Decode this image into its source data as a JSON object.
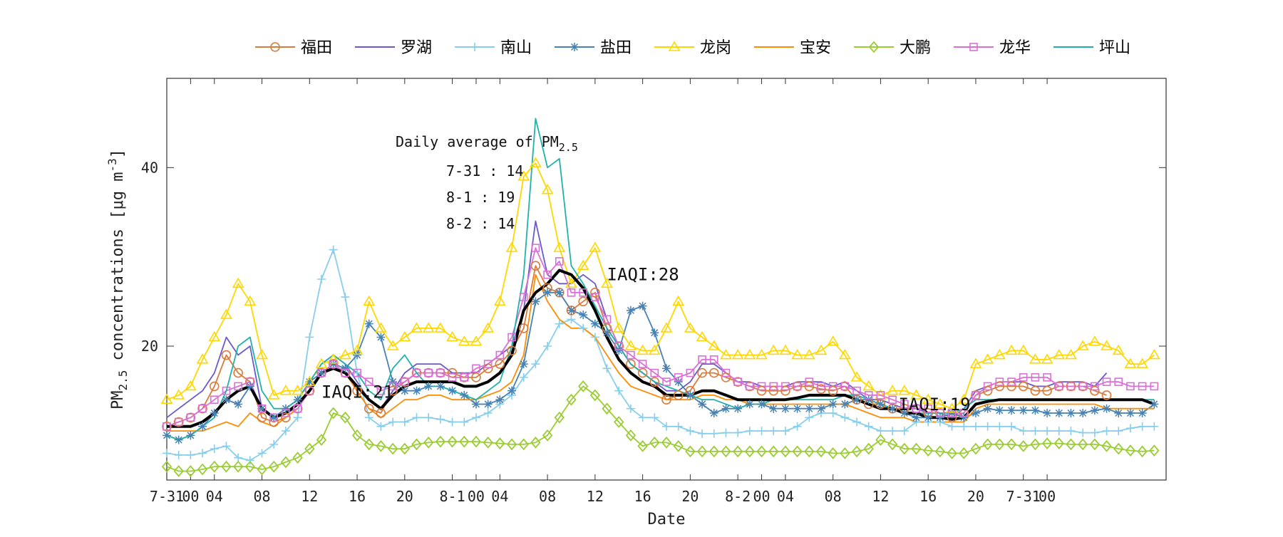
{
  "chart_data": {
    "type": "line",
    "xlabel": "Date",
    "ylabel_main": "PM",
    "ylabel_sub": "2.5",
    "ylabel_tail": " concentrations [μg m",
    "ylabel_sup": "-3",
    "ylabel_end": "]",
    "ylim": [
      5,
      50
    ],
    "yticks": [
      20,
      40
    ],
    "xlim": [
      0,
      84
    ],
    "xticks": [
      {
        "x": 0,
        "label": "7-31"
      },
      {
        "x": 2,
        "label": "00"
      },
      {
        "x": 4,
        "label": "04"
      },
      {
        "x": 8,
        "label": "08"
      },
      {
        "x": 12,
        "label": "12"
      },
      {
        "x": 16,
        "label": "16"
      },
      {
        "x": 20,
        "label": "20"
      },
      {
        "x": 24,
        "label": "8-1"
      },
      {
        "x": 26,
        "label": "00"
      },
      {
        "x": 28,
        "label": "04"
      },
      {
        "x": 32,
        "label": "08"
      },
      {
        "x": 36,
        "label": "12"
      },
      {
        "x": 40,
        "label": "16"
      },
      {
        "x": 44,
        "label": "20"
      },
      {
        "x": 48,
        "label": "8-2"
      },
      {
        "x": 50,
        "label": "00"
      },
      {
        "x": 52,
        "label": "04"
      },
      {
        "x": 56,
        "label": "08"
      },
      {
        "x": 60,
        "label": "12"
      },
      {
        "x": 64,
        "label": "16"
      },
      {
        "x": 68,
        "label": "20"
      },
      {
        "x": 72,
        "label": "7-31"
      },
      {
        "x": 74,
        "label": "00"
      }
    ],
    "grid": false,
    "legend_position": "top",
    "annotation": {
      "title_main": "Daily average of PM",
      "title_sub": "2.5",
      "lines": [
        "7-31 : 14",
        "8-1  : 19",
        "8-2  : 14"
      ]
    },
    "iaqi_labels": [
      {
        "x": 13,
        "y": 14.2,
        "text": "IAQI:21"
      },
      {
        "x": 37,
        "y": 27.4,
        "text": "IAQI:28"
      },
      {
        "x": 61.5,
        "y": 12.8,
        "text": "IAQI:19"
      }
    ],
    "series": [
      {
        "name": "福田",
        "color": "#D97B3A",
        "marker": "circle",
        "marker_every": 1,
        "values": [
          11,
          11.5,
          12,
          13,
          15.5,
          19,
          17,
          16,
          12,
          11.5,
          12,
          13,
          15,
          17,
          18,
          17,
          15,
          13,
          12.5,
          15,
          16,
          17,
          17,
          17,
          17,
          16.5,
          16.5,
          17.5,
          18,
          19.5,
          22,
          29,
          26.5,
          26,
          24,
          25,
          26,
          22,
          20,
          18,
          17,
          16,
          14,
          14.5,
          15,
          17,
          17,
          16.5,
          16,
          15.5,
          15,
          15,
          15,
          15.5,
          15.5,
          15.2,
          15,
          15.5,
          14,
          13.5,
          13.5,
          13,
          13,
          13,
          12.5,
          12.5,
          12,
          12.5,
          14.5,
          15,
          15.5,
          15.5,
          15.5,
          15,
          15,
          15.5,
          15.5,
          15.5,
          15,
          14.5
        ]
      },
      {
        "name": "罗湖",
        "color": "#6A5ACD",
        "marker": "none",
        "values": [
          12,
          13,
          14,
          15,
          17,
          21,
          19,
          20,
          13,
          12,
          13,
          14,
          16,
          18,
          19,
          18,
          16,
          14,
          13,
          15,
          17,
          18,
          18,
          18,
          17,
          17,
          17,
          18,
          19,
          20,
          24,
          34,
          28,
          27,
          27,
          28,
          27,
          23,
          20,
          18,
          17,
          16,
          15,
          15,
          16,
          18,
          18,
          17,
          16,
          16,
          15.5,
          15.5,
          15.5,
          16,
          16,
          16,
          15.5,
          16,
          15,
          14,
          14,
          13.5,
          13,
          13,
          12.5,
          12.5,
          12,
          13,
          15,
          15.5,
          16,
          16,
          16,
          15.5,
          15.5,
          16,
          16,
          16,
          15.5,
          17
        ]
      },
      {
        "name": "南山",
        "color": "#87CEEB",
        "marker": "plus",
        "marker_every": 1,
        "values": [
          8,
          7.8,
          7.8,
          8,
          8.5,
          8.8,
          7.5,
          7.2,
          8,
          9,
          10.5,
          12,
          21,
          27.5,
          30.8,
          25.5,
          17,
          12,
          11,
          11.5,
          11.5,
          12,
          12,
          11.8,
          11.5,
          11.5,
          12,
          12.5,
          13.5,
          14.5,
          16.5,
          18,
          20,
          22.5,
          23,
          22,
          21,
          17.5,
          15,
          13,
          12,
          12,
          11,
          11,
          10.5,
          10.2,
          10.2,
          10.3,
          10.3,
          10.5,
          10.5,
          10.5,
          10.5,
          11,
          12,
          12.5,
          12.5,
          12,
          11.5,
          11,
          10.5,
          10.5,
          10.5,
          11.5,
          11.5,
          11.5,
          11,
          11,
          11,
          11,
          11,
          11,
          10.5,
          10.5,
          10.5,
          10.5,
          10.5,
          10.3,
          10.3,
          10.5,
          10.5,
          10.8,
          11,
          11
        ]
      },
      {
        "name": "盐田",
        "color": "#4682B4",
        "marker": "star",
        "marker_every": 1,
        "values": [
          10,
          9.5,
          10,
          11,
          12.5,
          14,
          13.5,
          15.5,
          13,
          12,
          13,
          14,
          16,
          17,
          18,
          17.5,
          19,
          22.5,
          21,
          16,
          15,
          15,
          15.5,
          15.5,
          15,
          14.5,
          13.5,
          13.5,
          14,
          15,
          18,
          25,
          26,
          26,
          24,
          23.5,
          22.5,
          21.5,
          19.5,
          24,
          24.5,
          21.5,
          17.5,
          16,
          14.5,
          13.5,
          12.5,
          13,
          13,
          13.5,
          13.5,
          13,
          13,
          13,
          13,
          13,
          13.5,
          13.5,
          14,
          14,
          13.5,
          13,
          12.5,
          12,
          12,
          12,
          12.5,
          12,
          12.5,
          13,
          12.8,
          12.8,
          12.8,
          12.8,
          12.5,
          12.5,
          12.5,
          12.5,
          12.8,
          13,
          12.5,
          12.5,
          12.5,
          13.5
        ]
      },
      {
        "name": "龙岗",
        "color": "#FFD700",
        "marker": "triangle",
        "marker_every": 1,
        "values": [
          14,
          14.5,
          15.5,
          18.5,
          21,
          23.5,
          27,
          25,
          19,
          14.5,
          15,
          15,
          16,
          18,
          18.5,
          19,
          19.5,
          25,
          22,
          20,
          21,
          22,
          22,
          22,
          21,
          20.5,
          20.5,
          22,
          25,
          31,
          39,
          40.5,
          37.5,
          31,
          27,
          29,
          31,
          27,
          22,
          20,
          19.5,
          19.5,
          22,
          25,
          22,
          21,
          20,
          19,
          19,
          19,
          19,
          19.5,
          19.5,
          19,
          19,
          19.5,
          20.5,
          19,
          16.5,
          15.5,
          14.5,
          15,
          15,
          14.5,
          14,
          13.5,
          13,
          14,
          18,
          18.5,
          19,
          19.5,
          19.5,
          18.5,
          18.5,
          19,
          19,
          20,
          20.5,
          20,
          19.5,
          18,
          18,
          19
        ]
      },
      {
        "name": "宝安",
        "color": "#FF8C00",
        "marker": "none",
        "values": [
          10.5,
          10.5,
          10.5,
          10.5,
          11,
          11.5,
          11,
          12.5,
          11.5,
          11,
          12,
          13,
          15,
          17,
          18,
          17,
          15,
          13,
          12,
          13,
          14,
          14,
          14.5,
          14.5,
          14,
          14,
          14,
          14.5,
          15,
          16,
          19,
          28,
          25,
          23,
          22,
          22,
          21,
          19,
          17,
          15.5,
          15,
          14.5,
          14,
          14,
          14,
          14.5,
          14.5,
          14,
          14,
          13.5,
          13.5,
          13.5,
          13.5,
          13.5,
          13.5,
          13.5,
          13.5,
          13.5,
          13,
          12.5,
          12,
          12,
          12,
          11.5,
          11.5,
          11.5,
          11.5,
          11.5,
          13,
          13.5,
          13.5,
          13.5,
          13.5,
          13.5,
          13.5,
          13.5,
          13.5,
          13.5,
          13.5,
          13,
          13,
          13,
          13,
          13
        ]
      },
      {
        "name": "大鹏",
        "color": "#9ACD32",
        "marker": "diamond",
        "marker_every": 1,
        "values": [
          6.5,
          6,
          6,
          6.2,
          6.5,
          6.5,
          6.5,
          6.5,
          6.2,
          6.5,
          7,
          7.5,
          8.5,
          9.5,
          12.5,
          12,
          10,
          9,
          8.8,
          8.5,
          8.5,
          9,
          9.2,
          9.3,
          9.3,
          9.3,
          9.3,
          9.2,
          9.1,
          9,
          9,
          9.2,
          10,
          12,
          14,
          15.5,
          14.5,
          13,
          11.5,
          10,
          8.8,
          9.2,
          9.2,
          8.8,
          8.2,
          8.2,
          8.2,
          8.2,
          8.2,
          8.2,
          8.2,
          8.2,
          8.2,
          8.2,
          8.2,
          8.2,
          8,
          8,
          8.2,
          8.5,
          9.5,
          9,
          8.5,
          8.5,
          8.3,
          8.2,
          8,
          8,
          8.5,
          9,
          9,
          9,
          8.8,
          9,
          9.1,
          9.1,
          9,
          9,
          9,
          8.8,
          8.5,
          8.3,
          8.2,
          8.3
        ]
      },
      {
        "name": "龙华",
        "color": "#DA70D6",
        "marker": "square",
        "marker_every": 1,
        "values": [
          11,
          11.5,
          12,
          13,
          14,
          15,
          15.5,
          16,
          13,
          12,
          12.5,
          13,
          15,
          17,
          18,
          17,
          17,
          16,
          15,
          15.5,
          16,
          17,
          17,
          17,
          16.5,
          16.5,
          17.5,
          18,
          19,
          21,
          25.5,
          31,
          28,
          29.5,
          26,
          26,
          25.5,
          23,
          20,
          19,
          18,
          17,
          16,
          16.5,
          17,
          18.5,
          18.5,
          17,
          16,
          15.5,
          15.5,
          15.5,
          15.5,
          15.5,
          16,
          15.5,
          15.5,
          15.5,
          15,
          14.5,
          14.5,
          14,
          13.5,
          13,
          13,
          12.5,
          12.5,
          12.5,
          14.5,
          15.5,
          16,
          16,
          16.5,
          16.5,
          16.5,
          15.5,
          15.5,
          15.5,
          15.5,
          16,
          16,
          15.5,
          15.5,
          15.5
        ]
      },
      {
        "name": "坪山",
        "color": "#20B2AA",
        "marker": "none",
        "values": [
          10,
          9.5,
          10,
          11,
          12,
          15,
          20,
          21,
          15,
          13,
          13,
          14,
          16,
          18,
          19,
          18,
          17,
          15,
          14,
          17.5,
          19,
          17,
          15.5,
          15.5,
          15,
          14.5,
          14,
          15,
          16,
          20,
          28,
          45.5,
          40,
          41,
          29,
          27,
          24.5,
          22,
          20,
          18,
          17,
          16,
          15.5,
          15,
          14.5,
          14,
          14,
          13.5,
          13,
          13.5,
          13.5,
          14,
          14,
          14,
          14,
          14,
          14,
          14.5,
          14.5,
          14,
          13.5,
          13,
          12.5,
          12.5,
          12.5,
          12.5,
          12.5,
          13,
          14,
          14,
          14,
          14,
          14,
          14,
          14,
          14,
          14,
          14,
          14,
          14,
          14,
          14,
          14,
          14
        ]
      },
      {
        "name": "",
        "color": "#000000",
        "marker": "none",
        "line_width": 4,
        "is_average": true,
        "values": [
          11,
          11,
          11,
          11.5,
          12.5,
          14,
          15,
          15.5,
          13,
          12,
          12.5,
          13.5,
          15,
          17,
          17.5,
          17,
          15.5,
          14,
          13,
          14.5,
          15.5,
          16,
          16,
          16,
          16,
          15.5,
          15.5,
          16,
          17,
          19,
          24,
          26,
          27,
          28.5,
          28,
          26.5,
          24,
          21,
          18.5,
          17,
          16,
          15.5,
          14.5,
          14.5,
          14.5,
          15,
          15,
          14.5,
          14,
          14,
          14,
          14,
          14,
          14.2,
          14.5,
          14.5,
          14.5,
          14.5,
          14,
          13.5,
          13,
          13,
          12.5,
          12.5,
          12,
          12,
          11.8,
          12,
          13.5,
          13.8,
          14,
          14,
          14,
          14,
          14,
          14,
          14,
          14,
          14,
          14,
          14,
          14,
          14,
          13.5
        ]
      }
    ]
  }
}
